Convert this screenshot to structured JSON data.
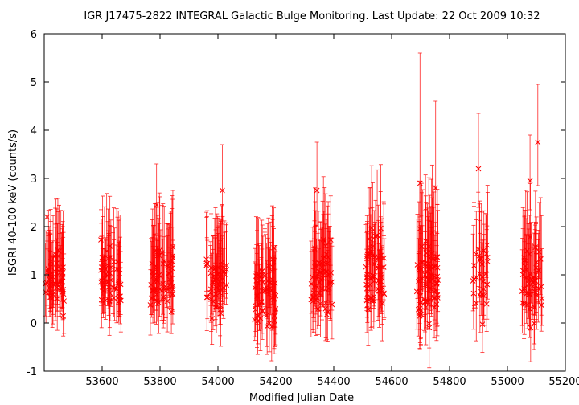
{
  "chart_data": {
    "type": "scatter",
    "title": "IGR J17475-2822    INTEGRAL Galactic Bulge Monitoring.  Last Update: 22 Oct 2009 10:32",
    "xlabel": "Modified Julian Date",
    "ylabel": "ISGRI 40-100 keV (counts/s)",
    "xlim": [
      53400,
      55200
    ],
    "ylim": [
      -1,
      6
    ],
    "xticks": [
      "53600",
      "53800",
      "54000",
      "54200",
      "54400",
      "54600",
      "54800",
      "55000",
      "55200"
    ],
    "yticks": [
      "-1",
      "0",
      "1",
      "2",
      "3",
      "4",
      "5",
      "6"
    ],
    "grid": false,
    "legend": "none",
    "marker": "x",
    "error_bars": "vertical",
    "series_color": "#ff0000",
    "visibility_windows": [
      {
        "start": 53400,
        "end": 53470,
        "n": 55,
        "mean": 0.95,
        "spread": 0.55,
        "err_lo": 0.55,
        "err_hi": 1.0
      },
      {
        "start": 53595,
        "end": 53665,
        "n": 55,
        "mean": 0.9,
        "spread": 0.55,
        "err_lo": 0.55,
        "err_hi": 1.0
      },
      {
        "start": 53765,
        "end": 53845,
        "n": 60,
        "mean": 0.9,
        "spread": 0.6,
        "err_lo": 0.55,
        "err_hi": 1.05
      },
      {
        "start": 53960,
        "end": 54030,
        "n": 55,
        "mean": 0.85,
        "spread": 0.6,
        "err_lo": 0.55,
        "err_hi": 1.05
      },
      {
        "start": 54125,
        "end": 54200,
        "n": 60,
        "mean": 0.65,
        "spread": 0.6,
        "err_lo": 0.55,
        "err_hi": 1.05
      },
      {
        "start": 54320,
        "end": 54395,
        "n": 60,
        "mean": 0.95,
        "spread": 0.65,
        "err_lo": 0.6,
        "err_hi": 1.1
      },
      {
        "start": 54510,
        "end": 54575,
        "n": 55,
        "mean": 1.0,
        "spread": 0.65,
        "err_lo": 0.6,
        "err_hi": 1.1
      },
      {
        "start": 54685,
        "end": 54760,
        "n": 75,
        "mean": 1.0,
        "spread": 0.75,
        "err_lo": 0.65,
        "err_hi": 1.2
      },
      {
        "start": 54880,
        "end": 54935,
        "n": 30,
        "mean": 1.1,
        "spread": 0.9,
        "err_lo": 0.65,
        "err_hi": 1.2
      },
      {
        "start": 55050,
        "end": 55120,
        "n": 50,
        "mean": 0.85,
        "spread": 0.7,
        "err_lo": 0.6,
        "err_hi": 1.15
      }
    ],
    "notable_points": [
      {
        "x": 54698,
        "y": 2.9,
        "err_lo": 0.7,
        "err_hi": 2.7
      },
      {
        "x": 54752,
        "y": 2.8,
        "err_lo": 0.8,
        "err_hi": 1.8
      },
      {
        "x": 54015,
        "y": 2.75,
        "err_lo": 0.7,
        "err_hi": 0.95
      },
      {
        "x": 53788,
        "y": 2.45,
        "err_lo": 0.6,
        "err_hi": 0.85
      },
      {
        "x": 54342,
        "y": 2.75,
        "err_lo": 0.75,
        "err_hi": 1.0
      },
      {
        "x": 54900,
        "y": 3.2,
        "err_lo": 0.8,
        "err_hi": 1.15
      },
      {
        "x": 55105,
        "y": 3.75,
        "err_lo": 0.9,
        "err_hi": 1.2
      },
      {
        "x": 55078,
        "y": 2.95,
        "err_lo": 0.6,
        "err_hi": 0.95
      },
      {
        "x": 53410,
        "y": 2.2,
        "err_lo": 0.5,
        "err_hi": 0.8
      }
    ]
  }
}
